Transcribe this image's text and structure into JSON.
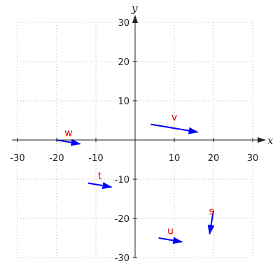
{
  "chart_data": {
    "type": "vector_plot",
    "title": "",
    "xlabel": "x",
    "ylabel": "y",
    "xlim": [
      -30,
      30
    ],
    "ylim": [
      -30,
      30
    ],
    "x_ticks": [
      -30,
      -20,
      -10,
      10,
      20,
      30
    ],
    "y_ticks": [
      30,
      20,
      10,
      -10,
      -20,
      -30
    ],
    "x_tick_labels": [
      "-30",
      "-20",
      "-10",
      "10",
      "20",
      "30"
    ],
    "y_tick_labels": [
      "30",
      "20",
      "10",
      "-10",
      "-20",
      "-30"
    ],
    "grid": true,
    "grid_step": 10,
    "vectors": [
      {
        "name": "v",
        "x0": 4,
        "y0": 4,
        "x1": 16,
        "y1": 2,
        "label_x": 10,
        "label_y": 5
      },
      {
        "name": "w",
        "x0": -20,
        "y0": 0,
        "x1": -14,
        "y1": -1,
        "label_x": -17,
        "label_y": 1
      },
      {
        "name": "t",
        "x0": -12,
        "y0": -11,
        "x1": -6,
        "y1": -12,
        "label_x": -9,
        "label_y": -10
      },
      {
        "name": "s",
        "x0": 20,
        "y0": -18,
        "x1": 19,
        "y1": -24,
        "label_x": 19.5,
        "label_y": -19
      },
      {
        "name": "u",
        "x0": 6,
        "y0": -25,
        "x1": 12,
        "y1": -26,
        "label_x": 9,
        "label_y": -24
      }
    ],
    "colors": {
      "vector": "#0000ff",
      "label": "#e00000",
      "axis": "#222222",
      "grid": "#b0b0b0"
    }
  }
}
